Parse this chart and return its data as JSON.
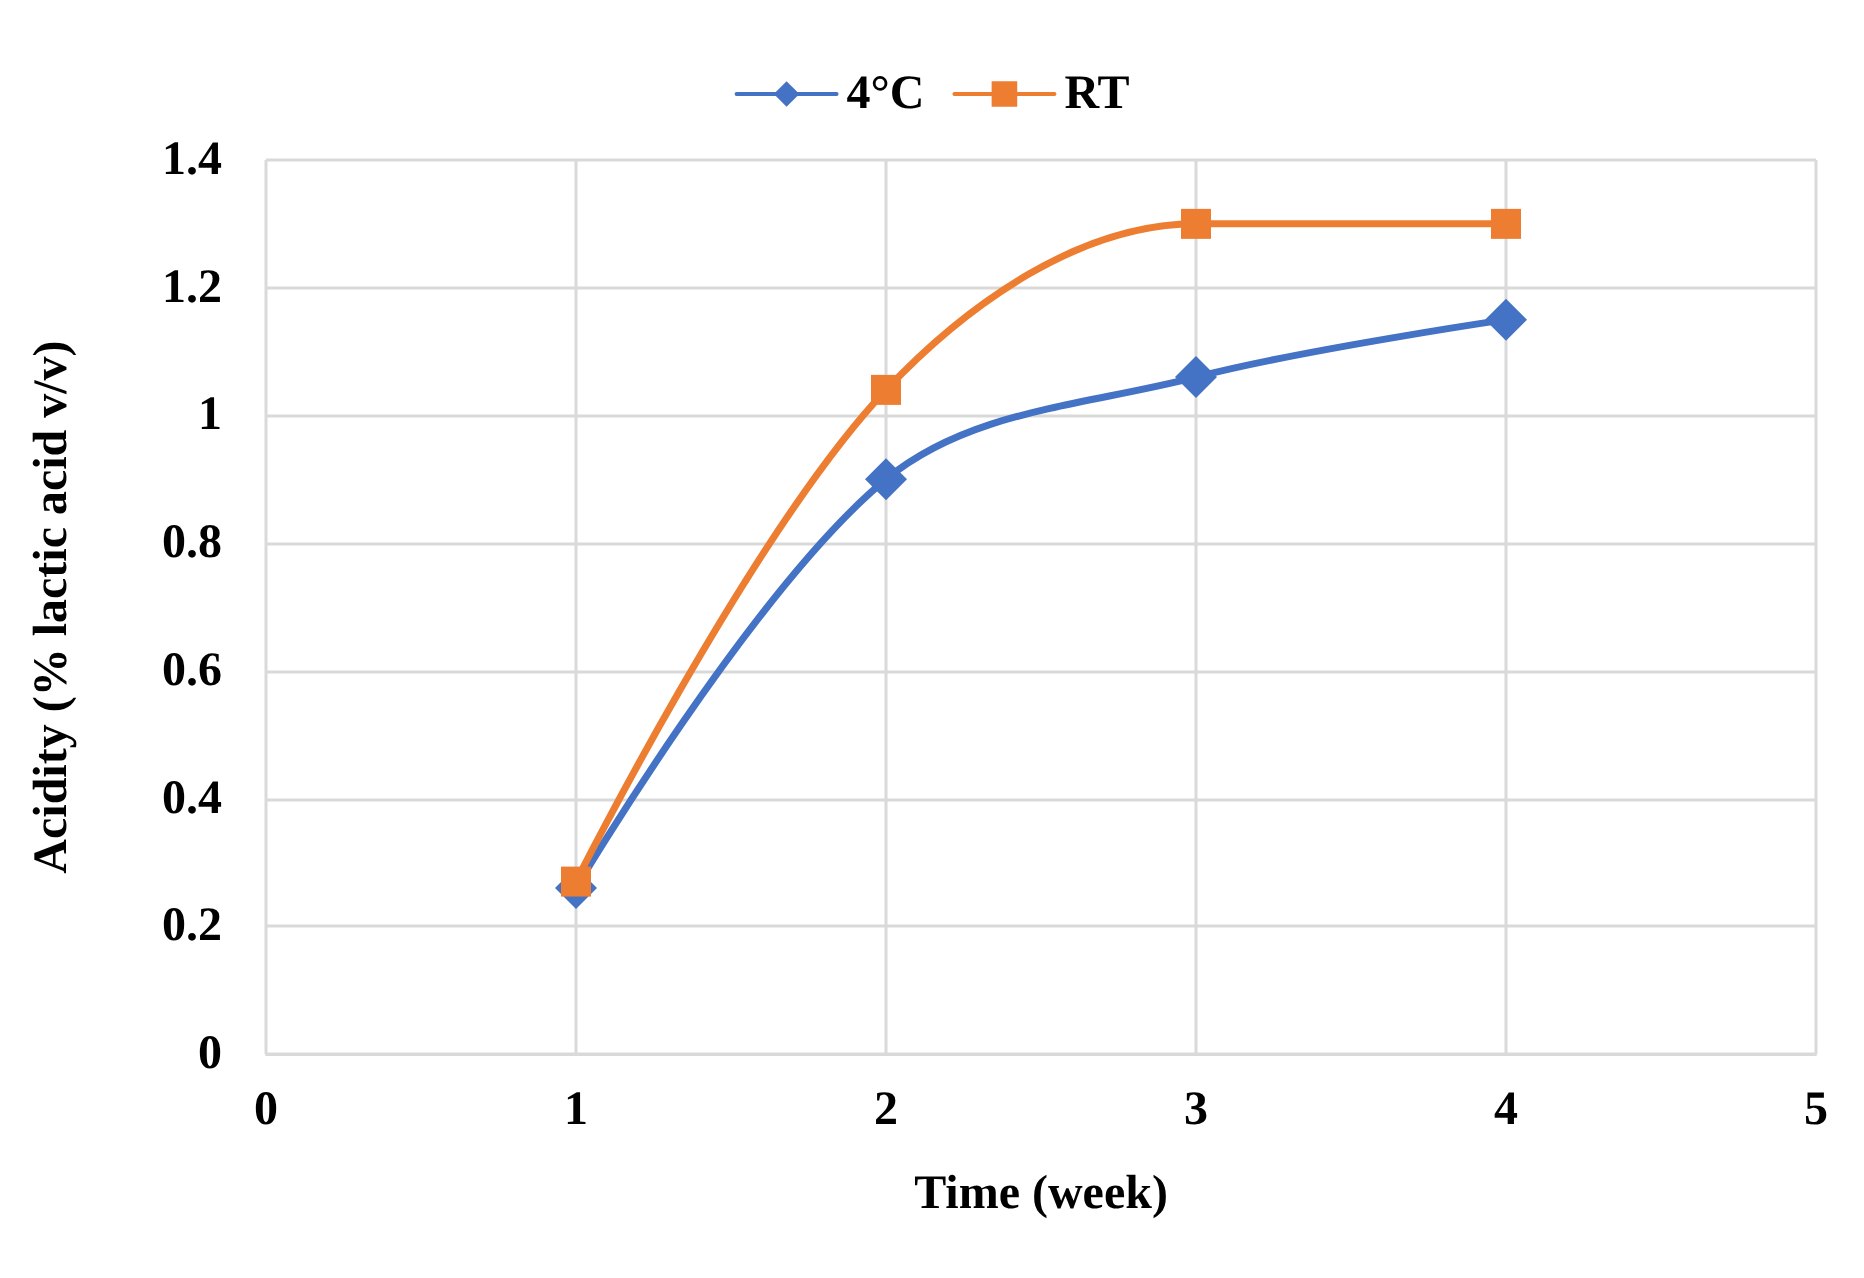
{
  "chart_data": {
    "type": "line",
    "xlabel": "Time (week)",
    "ylabel": "Acidity (% lactic acid v/v)",
    "x": [
      1,
      2,
      3,
      4
    ],
    "series": [
      {
        "name": "4°C",
        "color": "#4472c4",
        "marker": "diamond",
        "values": [
          0.26,
          0.9,
          1.06,
          1.15
        ]
      },
      {
        "name": "RT",
        "color": "#ed7d31",
        "marker": "square",
        "values": [
          0.27,
          1.04,
          1.3,
          1.3
        ]
      }
    ],
    "xlim": [
      0,
      5
    ],
    "xticks": [
      0,
      1,
      2,
      3,
      4,
      5
    ],
    "ylim": [
      0,
      1.4
    ],
    "yticks": [
      0,
      0.2,
      0.4,
      0.6,
      0.8,
      1,
      1.2,
      1.4
    ],
    "grid": true,
    "legend": "top"
  }
}
